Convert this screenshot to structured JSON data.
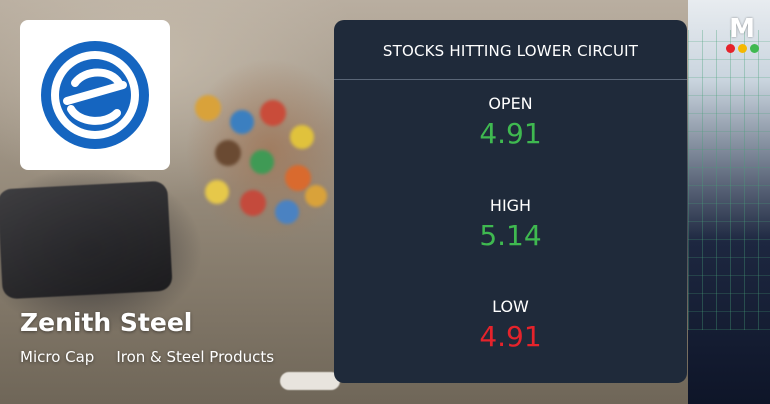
{
  "company": {
    "name": "Zenith Steel",
    "tags": [
      "Micro Cap",
      "Iron & Steel Products"
    ],
    "logo_icon": "zenith-e-logo-icon"
  },
  "card": {
    "title": "STOCKS HITTING LOWER CIRCUIT",
    "metrics": [
      {
        "label": "OPEN",
        "value": "4.91",
        "trend": "up"
      },
      {
        "label": "HIGH",
        "value": "5.14",
        "trend": "up"
      },
      {
        "label": "LOW",
        "value": "4.91",
        "trend": "down"
      }
    ]
  },
  "colors": {
    "card_bg": "#1f2a3a",
    "positive": "#3fb950",
    "negative": "#e5232b",
    "logo_blue": "#1565c0"
  },
  "brand": {
    "letter": "M",
    "dot_colors": [
      "#e5232b",
      "#f5b800",
      "#3fb950"
    ]
  }
}
